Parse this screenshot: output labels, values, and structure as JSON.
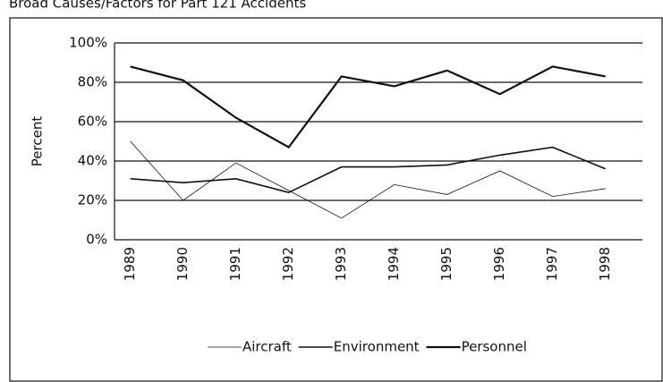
{
  "chart_data": {
    "type": "line",
    "title": "Broad Causes/Factors for Part 121 Accidents",
    "y_label": "Percent",
    "categories": [
      "1989",
      "1990",
      "1991",
      "1992",
      "1993",
      "1994",
      "1995",
      "1996",
      "1997",
      "1998"
    ],
    "series": [
      {
        "name": "Aircraft",
        "color": "#111111",
        "values": [
          50,
          20,
          39,
          25,
          11,
          28,
          23,
          35,
          22,
          26
        ]
      },
      {
        "name": "Environment",
        "color": "#111111",
        "values": [
          31,
          29,
          31,
          24,
          37,
          37,
          38,
          43,
          47,
          36
        ]
      },
      {
        "name": "Personnel",
        "color": "#111111",
        "values": [
          88,
          81,
          62,
          47,
          83,
          78,
          86,
          74,
          88,
          83
        ]
      }
    ],
    "ylim": [
      0,
      100
    ],
    "yticks": [
      {
        "value": 0,
        "label": "0%"
      },
      {
        "value": 20,
        "label": "20%"
      },
      {
        "value": 40,
        "label": "40%"
      },
      {
        "value": 60,
        "label": "60%"
      },
      {
        "value": 80,
        "label": "80%"
      },
      {
        "value": 100,
        "label": "100%"
      }
    ],
    "grid": true,
    "legend": "bottom"
  }
}
